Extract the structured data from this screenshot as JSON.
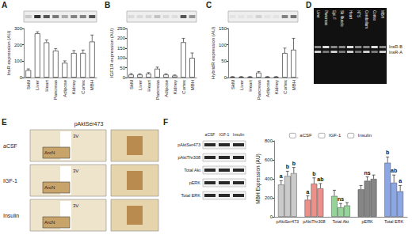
{
  "panel_labels": [
    "A",
    "B",
    "C",
    "D",
    "E",
    "F"
  ],
  "gel": {
    "lanes": [
      "Liver",
      "Pancreas",
      "Epi. F",
      "Sk Muscle",
      "Heart",
      "NTS",
      "Cerebellum",
      "Cortex",
      "MBH"
    ],
    "bands": [
      "InsR-B",
      "InsR-A"
    ]
  },
  "histology": {
    "title": "pAktSer473",
    "rows": [
      "aCSF",
      "IGF-1",
      "Insulin"
    ],
    "labels": [
      "3V",
      "ArcN"
    ]
  },
  "blot_f": {
    "rows": [
      "pAktSer473",
      "pAktThr308",
      "Total Akt",
      "pERK",
      "Total ERK"
    ],
    "columns": [
      "aCSF",
      "IGF-1",
      "Insulin"
    ]
  },
  "chart_data": [
    {
      "type": "bar",
      "categories": [
        "SkM",
        "Liver",
        "Heart",
        "Pancreas",
        "Adipose",
        "Kidney",
        "Cortex",
        "MBH"
      ],
      "values": [
        45,
        270,
        215,
        165,
        90,
        150,
        150,
        220
      ],
      "errors": [
        8,
        10,
        15,
        12,
        12,
        15,
        18,
        40
      ],
      "color": "#ffffff",
      "y_label": "InsR expression (AU)",
      "ylim": [
        0,
        300
      ],
      "yticks": [
        0,
        100,
        200,
        300
      ]
    },
    {
      "type": "bar",
      "categories": [
        "SkM",
        "Liver",
        "Heart",
        "Pancreas",
        "Adipose",
        "Kidney",
        "Cortex",
        "MBH"
      ],
      "values": [
        15,
        15,
        20,
        45,
        15,
        10,
        180,
        100
      ],
      "errors": [
        5,
        4,
        5,
        8,
        4,
        3,
        20,
        25
      ],
      "color": "#ffffff",
      "y_label": "IGF1R expression (AU)",
      "ylim": [
        0,
        250
      ],
      "yticks": [
        0,
        50,
        100,
        150,
        200,
        250
      ]
    },
    {
      "type": "bar",
      "categories": [
        "SkM",
        "Liver",
        "Heart",
        "Pancreas",
        "Adipose",
        "Kidney",
        "Cortex",
        "MBH"
      ],
      "values": [
        2,
        2,
        2,
        15,
        2,
        2,
        75,
        85
      ],
      "errors": [
        1,
        1,
        1,
        3,
        1,
        1,
        15,
        35
      ],
      "color": "#ffffff",
      "y_label": "HybridR expression (AU)",
      "ylim": [
        0,
        150
      ],
      "yticks": [
        0,
        50,
        100,
        150
      ]
    },
    {
      "type": "bar",
      "categories": [
        "pAktSer473",
        "pAktThr308",
        "Total Akt",
        "pERK",
        "Total ERK"
      ],
      "y_label": "MBH Expression (AU)",
      "ylim": [
        0,
        800
      ],
      "yticks": [
        0,
        200,
        400,
        600,
        800
      ],
      "legend": "top",
      "series": [
        {
          "name": "aCSF",
          "color": "#555555",
          "colors": [
            "#9e9e9e",
            "#e0342a",
            "#3cb043",
            "#222222",
            "#2f5fd0"
          ],
          "values": [
            340,
            180,
            220,
            290,
            570
          ],
          "errors": [
            40,
            40,
            60,
            40,
            60
          ],
          "annotations": [
            "a",
            "a",
            null,
            null,
            "b"
          ]
        },
        {
          "name": "IGF-1",
          "color": "#555555",
          "colors": [
            "#9e9e9e",
            "#e0342a",
            "#3cb043",
            "#222222",
            "#2f5fd0"
          ],
          "values": [
            430,
            350,
            100,
            380,
            360
          ],
          "errors": [
            50,
            60,
            40,
            40,
            80
          ],
          "annotations": [
            "b",
            "b",
            "ns",
            "ns",
            "ab"
          ]
        },
        {
          "name": "Insulin",
          "color": "#555555",
          "colors": [
            "#9e9e9e",
            "#e0342a",
            "#3cb043",
            "#222222",
            "#2f5fd0"
          ],
          "values": [
            460,
            300,
            120,
            400,
            270
          ],
          "errors": [
            60,
            50,
            30,
            40,
            60
          ],
          "annotations": [
            "b",
            "ab",
            null,
            null,
            "a"
          ]
        }
      ]
    }
  ]
}
